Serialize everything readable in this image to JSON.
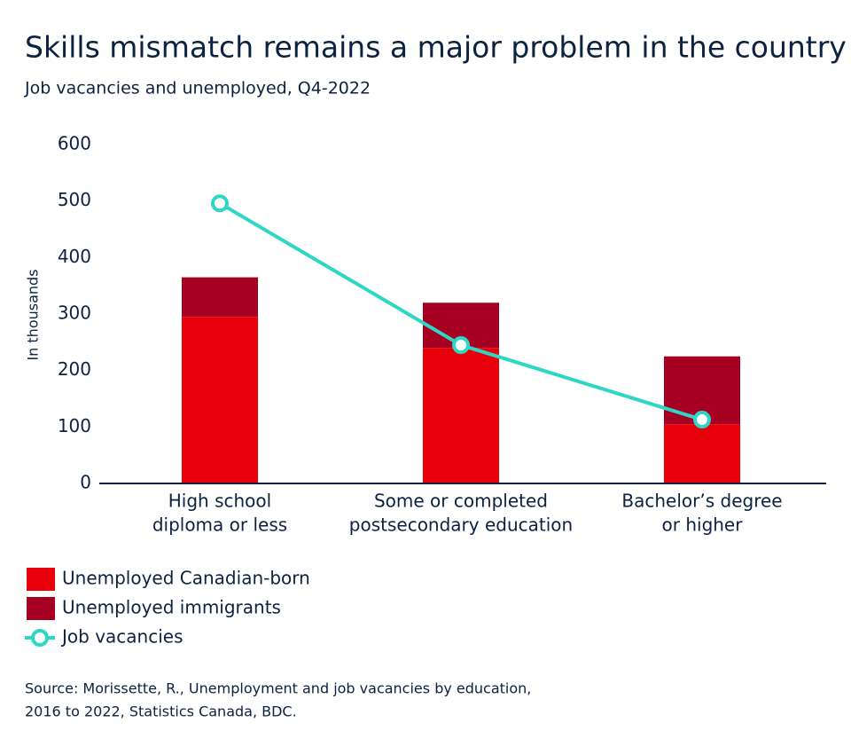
{
  "chart_data": {
    "type": "bar-line",
    "title": "Skills mismatch remains a major problem in the country",
    "subtitle": "Job vacancies and unemployed, Q4-2022",
    "y_label": "In thousands",
    "categories": [
      [
        "High school",
        "diploma or less"
      ],
      [
        "Some or completed",
        "postsecondary education"
      ],
      [
        "Bachelor’s degree",
        "or higher"
      ]
    ],
    "series": [
      {
        "name": "Unemployed Canadian-born",
        "color": "#e8000b",
        "type": "bar",
        "values": [
          295,
          240,
          105
        ]
      },
      {
        "name": "Unemployed immigrants",
        "color": "#a50021",
        "type": "bar",
        "values": [
          70,
          80,
          120
        ]
      },
      {
        "name": "Job vacancies",
        "color": "#2ed6c6",
        "type": "line",
        "values": [
          496,
          245,
          113
        ]
      }
    ],
    "stacked": true,
    "ylim": [
      0,
      600
    ],
    "yticks": [
      0,
      100,
      200,
      300,
      400,
      500,
      600
    ],
    "grid": false,
    "source": [
      "Source: Morissette, R., Unemployment and job vacancies by education,",
      "2016 to 2022, Statistics Canada, BDC."
    ]
  }
}
